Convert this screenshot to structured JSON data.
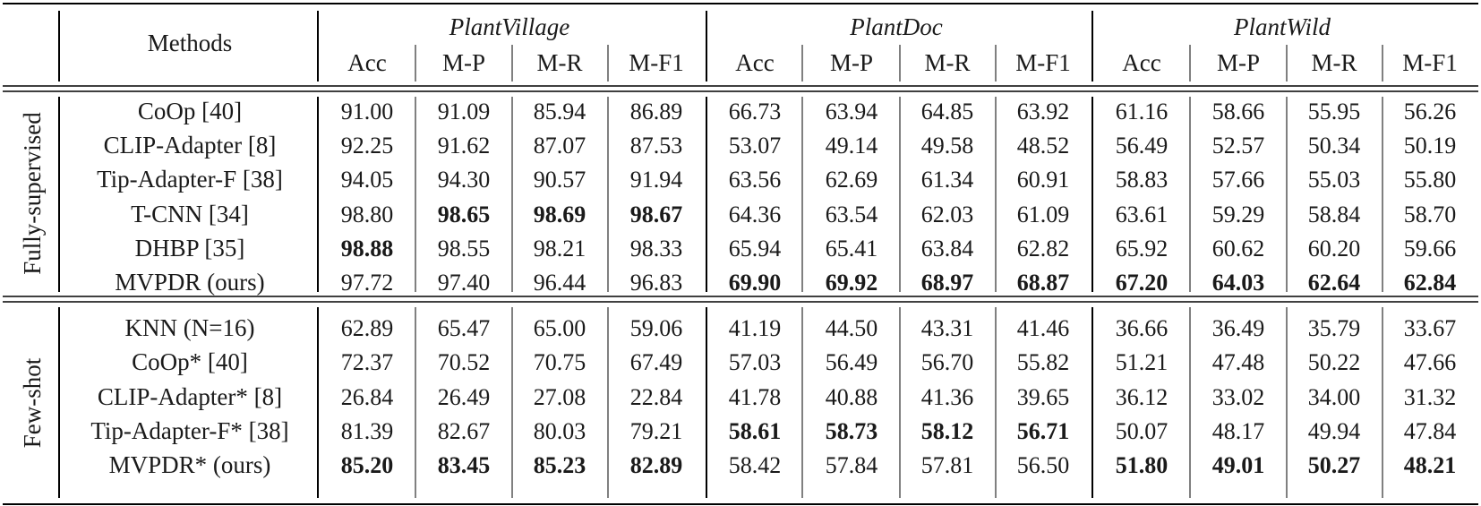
{
  "table": {
    "methods_header": "Methods",
    "datasets": [
      {
        "name": "PlantVillage",
        "metrics": [
          "Acc",
          "M-P",
          "M-R",
          "M-F1"
        ]
      },
      {
        "name": "PlantDoc",
        "metrics": [
          "Acc",
          "M-P",
          "M-R",
          "M-F1"
        ]
      },
      {
        "name": "PlantWild",
        "metrics": [
          "Acc",
          "M-P",
          "M-R",
          "M-F1"
        ]
      }
    ],
    "groups": [
      {
        "label": "Fully-supervised",
        "rows": [
          {
            "method": "CoOp [40]",
            "values": [
              "91.00",
              "91.09",
              "85.94",
              "86.89",
              "66.73",
              "63.94",
              "64.85",
              "63.92",
              "61.16",
              "58.66",
              "55.95",
              "56.26"
            ],
            "bold": [
              false,
              false,
              false,
              false,
              false,
              false,
              false,
              false,
              false,
              false,
              false,
              false
            ]
          },
          {
            "method": "CLIP-Adapter [8]",
            "values": [
              "92.25",
              "91.62",
              "87.07",
              "87.53",
              "53.07",
              "49.14",
              "49.58",
              "48.52",
              "56.49",
              "52.57",
              "50.34",
              "50.19"
            ],
            "bold": [
              false,
              false,
              false,
              false,
              false,
              false,
              false,
              false,
              false,
              false,
              false,
              false
            ]
          },
          {
            "method": "Tip-Adapter-F [38]",
            "values": [
              "94.05",
              "94.30",
              "90.57",
              "91.94",
              "63.56",
              "62.69",
              "61.34",
              "60.91",
              "58.83",
              "57.66",
              "55.03",
              "55.80"
            ],
            "bold": [
              false,
              false,
              false,
              false,
              false,
              false,
              false,
              false,
              false,
              false,
              false,
              false
            ]
          },
          {
            "method": "T-CNN [34]",
            "values": [
              "98.80",
              "98.65",
              "98.69",
              "98.67",
              "64.36",
              "63.54",
              "62.03",
              "61.09",
              "63.61",
              "59.29",
              "58.84",
              "58.70"
            ],
            "bold": [
              false,
              true,
              true,
              true,
              false,
              false,
              false,
              false,
              false,
              false,
              false,
              false
            ]
          },
          {
            "method": "DHBP [35]",
            "values": [
              "98.88",
              "98.55",
              "98.21",
              "98.33",
              "65.94",
              "65.41",
              "63.84",
              "62.82",
              "65.92",
              "60.62",
              "60.20",
              "59.66"
            ],
            "bold": [
              true,
              false,
              false,
              false,
              false,
              false,
              false,
              false,
              false,
              false,
              false,
              false
            ]
          },
          {
            "method": "MVPDR (ours)",
            "values": [
              "97.72",
              "97.40",
              "96.44",
              "96.83",
              "69.90",
              "69.92",
              "68.97",
              "68.87",
              "67.20",
              "64.03",
              "62.64",
              "62.84"
            ],
            "bold": [
              false,
              false,
              false,
              false,
              true,
              true,
              true,
              true,
              true,
              true,
              true,
              true
            ]
          }
        ]
      },
      {
        "label": "Few-shot",
        "rows": [
          {
            "method": "KNN (N=16)",
            "values": [
              "62.89",
              "65.47",
              "65.00",
              "59.06",
              "41.19",
              "44.50",
              "43.31",
              "41.46",
              "36.66",
              "36.49",
              "35.79",
              "33.67"
            ],
            "bold": [
              false,
              false,
              false,
              false,
              false,
              false,
              false,
              false,
              false,
              false,
              false,
              false
            ]
          },
          {
            "method": "CoOp* [40]",
            "values": [
              "72.37",
              "70.52",
              "70.75",
              "67.49",
              "57.03",
              "56.49",
              "56.70",
              "55.82",
              "51.21",
              "47.48",
              "50.22",
              "47.66"
            ],
            "bold": [
              false,
              false,
              false,
              false,
              false,
              false,
              false,
              false,
              false,
              false,
              false,
              false
            ]
          },
          {
            "method": "CLIP-Adapter* [8]",
            "values": [
              "26.84",
              "26.49",
              "27.08",
              "22.84",
              "41.78",
              "40.88",
              "41.36",
              "39.65",
              "36.12",
              "33.02",
              "34.00",
              "31.32"
            ],
            "bold": [
              false,
              false,
              false,
              false,
              false,
              false,
              false,
              false,
              false,
              false,
              false,
              false
            ]
          },
          {
            "method": "Tip-Adapter-F* [38]",
            "values": [
              "81.39",
              "82.67",
              "80.03",
              "79.21",
              "58.61",
              "58.73",
              "58.12",
              "56.71",
              "50.07",
              "48.17",
              "49.94",
              "47.84"
            ],
            "bold": [
              false,
              false,
              false,
              false,
              true,
              true,
              true,
              true,
              false,
              false,
              false,
              false
            ]
          },
          {
            "method": "MVPDR* (ours)",
            "values": [
              "85.20",
              "83.45",
              "85.23",
              "82.89",
              "58.42",
              "57.84",
              "57.81",
              "56.50",
              "51.80",
              "49.01",
              "50.27",
              "48.21"
            ],
            "bold": [
              true,
              true,
              true,
              true,
              false,
              false,
              false,
              false,
              true,
              true,
              true,
              true
            ]
          }
        ]
      }
    ]
  }
}
